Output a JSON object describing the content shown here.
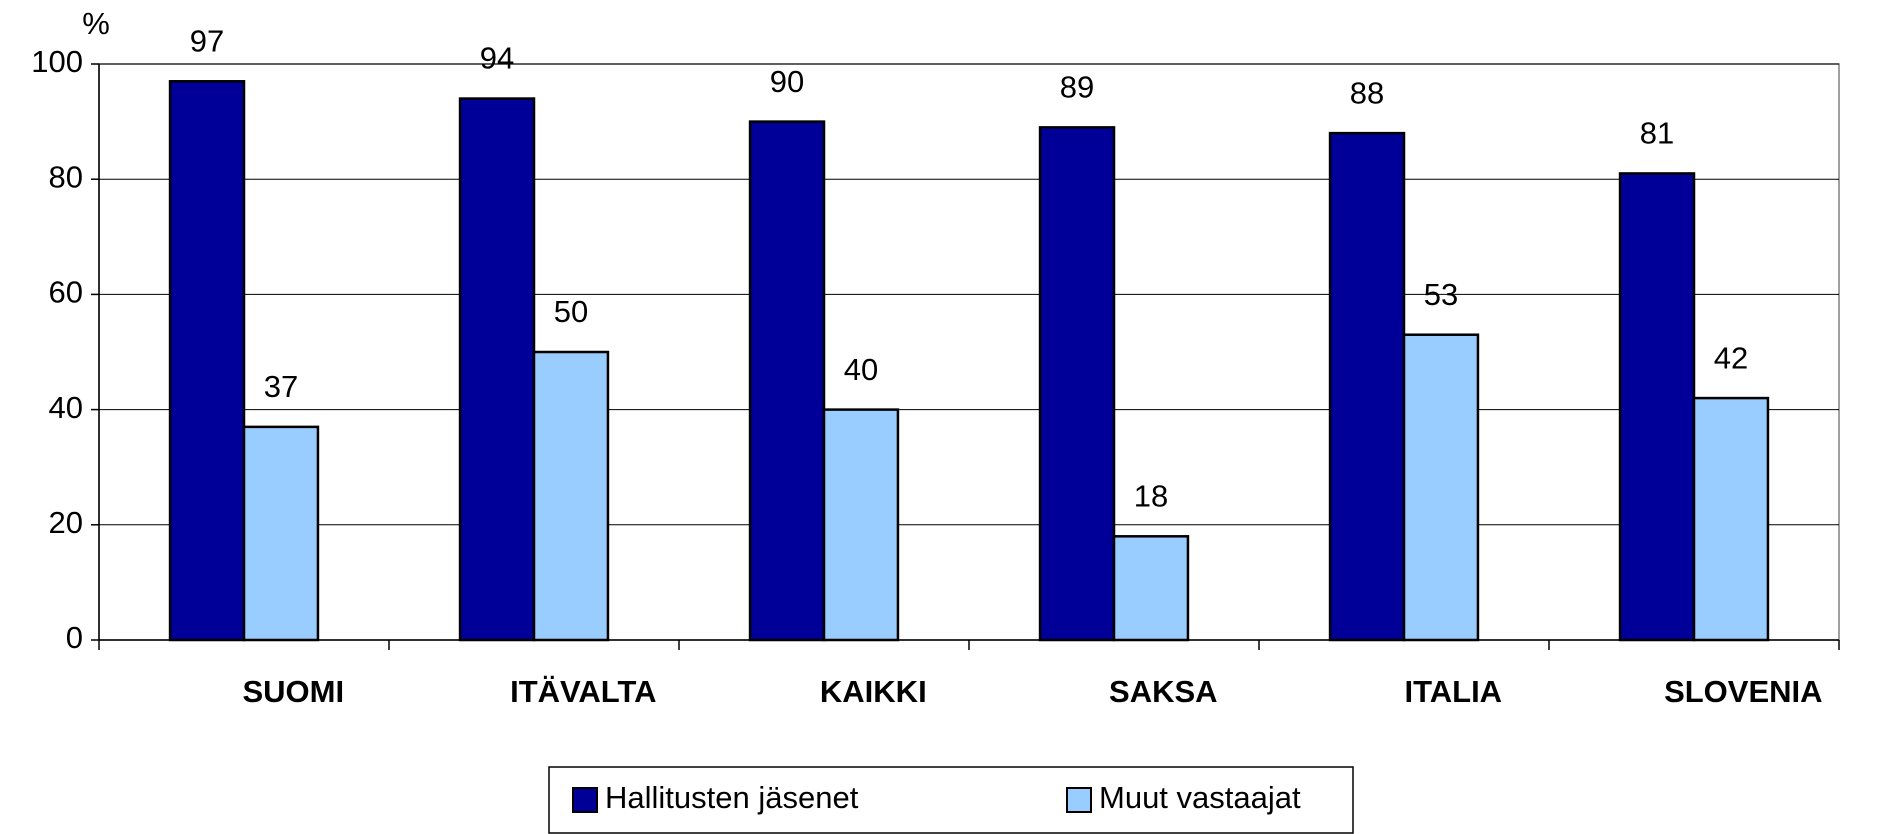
{
  "chart_data": {
    "type": "bar",
    "y_label": "%",
    "categories": [
      "SUOMI",
      "ITÄVALTA",
      "KAIKKI",
      "SAKSA",
      "ITALIA",
      "SLOVENIA"
    ],
    "series": [
      {
        "name": "Hallitusten jäsenet",
        "color": "#000099",
        "values": [
          97,
          94,
          90,
          89,
          88,
          81
        ]
      },
      {
        "name": "Muut vastaajat",
        "color": "#99ccff",
        "values": [
          37,
          50,
          40,
          18,
          53,
          42
        ]
      }
    ],
    "ylim": [
      0,
      100
    ],
    "yticks": [
      0,
      20,
      40,
      60,
      80,
      100
    ],
    "grid": true,
    "legend": "bottom"
  }
}
